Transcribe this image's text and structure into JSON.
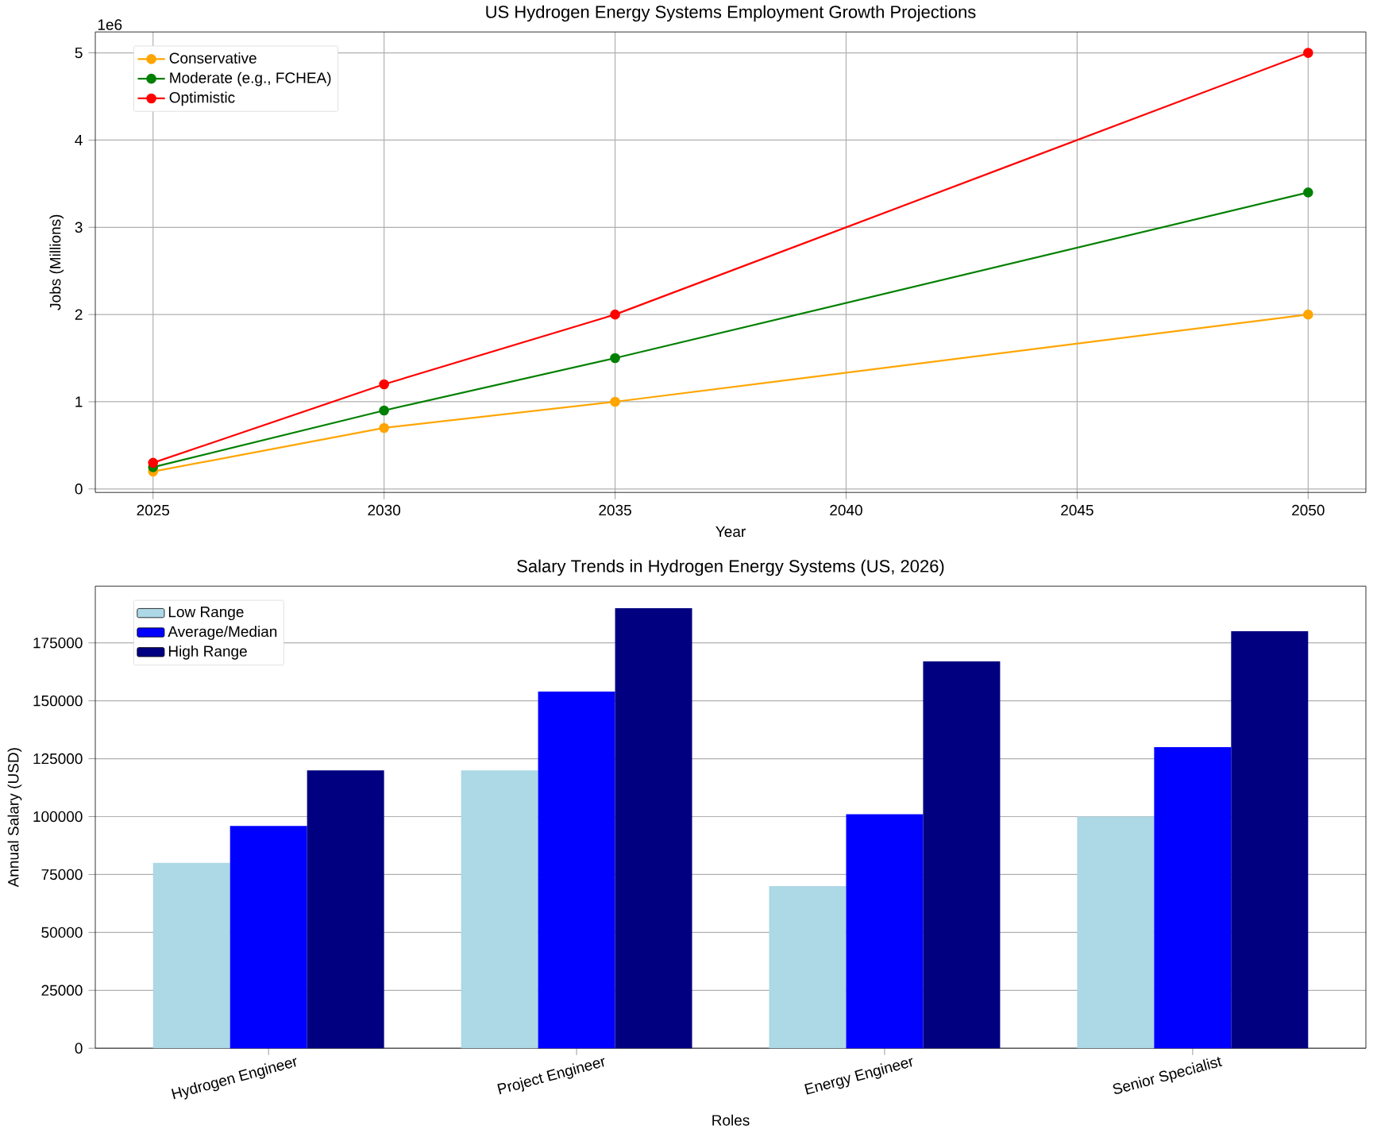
{
  "chart_data": [
    {
      "type": "line",
      "title": "US Hydrogen Energy Systems Employment Growth Projections",
      "xlabel": "Year",
      "ylabel": "Jobs (Millions)",
      "annotations": [
        "1e6"
      ],
      "x": [
        2025,
        2030,
        2035,
        2050
      ],
      "series": [
        {
          "name": "Conservative",
          "color": "#ffa500",
          "values": [
            0.2,
            0.7,
            1.0,
            2.0
          ]
        },
        {
          "name": "Moderate (e.g., FCHEA)",
          "color": "#008000",
          "values": [
            0.25,
            0.9,
            1.5,
            3.4
          ]
        },
        {
          "name": "Optimistic",
          "color": "#ff0000",
          "values": [
            0.3,
            1.2,
            2.0,
            5.0
          ]
        }
      ],
      "xlim": [
        2023.75,
        2051.25
      ],
      "ylim": [
        -0.04,
        5.24
      ],
      "xticks": [
        2025,
        2030,
        2035,
        2040,
        2045,
        2050
      ],
      "yticks": [
        0,
        1,
        2,
        3,
        4,
        5
      ],
      "grid": true,
      "legend": "top left",
      "marker": "circle",
      "line_style": "solid"
    },
    {
      "type": "bar",
      "title": "Salary Trends in Hydrogen Energy Systems (US, 2026)",
      "xlabel": "Roles",
      "ylabel": "Annual Salary (USD)",
      "categories": [
        "Hydrogen Engineer",
        "Project Engineer",
        "Energy Engineer",
        "Senior Specialist"
      ],
      "series": [
        {
          "name": "Low Range",
          "color": "#add8e6",
          "values": [
            80000,
            120000,
            70000,
            100000
          ]
        },
        {
          "name": "Average/Median",
          "color": "#0000ff",
          "values": [
            96000,
            154000,
            101000,
            130000
          ]
        },
        {
          "name": "High Range",
          "color": "#000080",
          "values": [
            120000,
            190000,
            167000,
            180000
          ]
        }
      ],
      "ylim": [
        0,
        199500
      ],
      "yticks": [
        0,
        25000,
        50000,
        75000,
        100000,
        125000,
        150000,
        175000
      ],
      "grid": "y",
      "legend": "top left"
    }
  ]
}
